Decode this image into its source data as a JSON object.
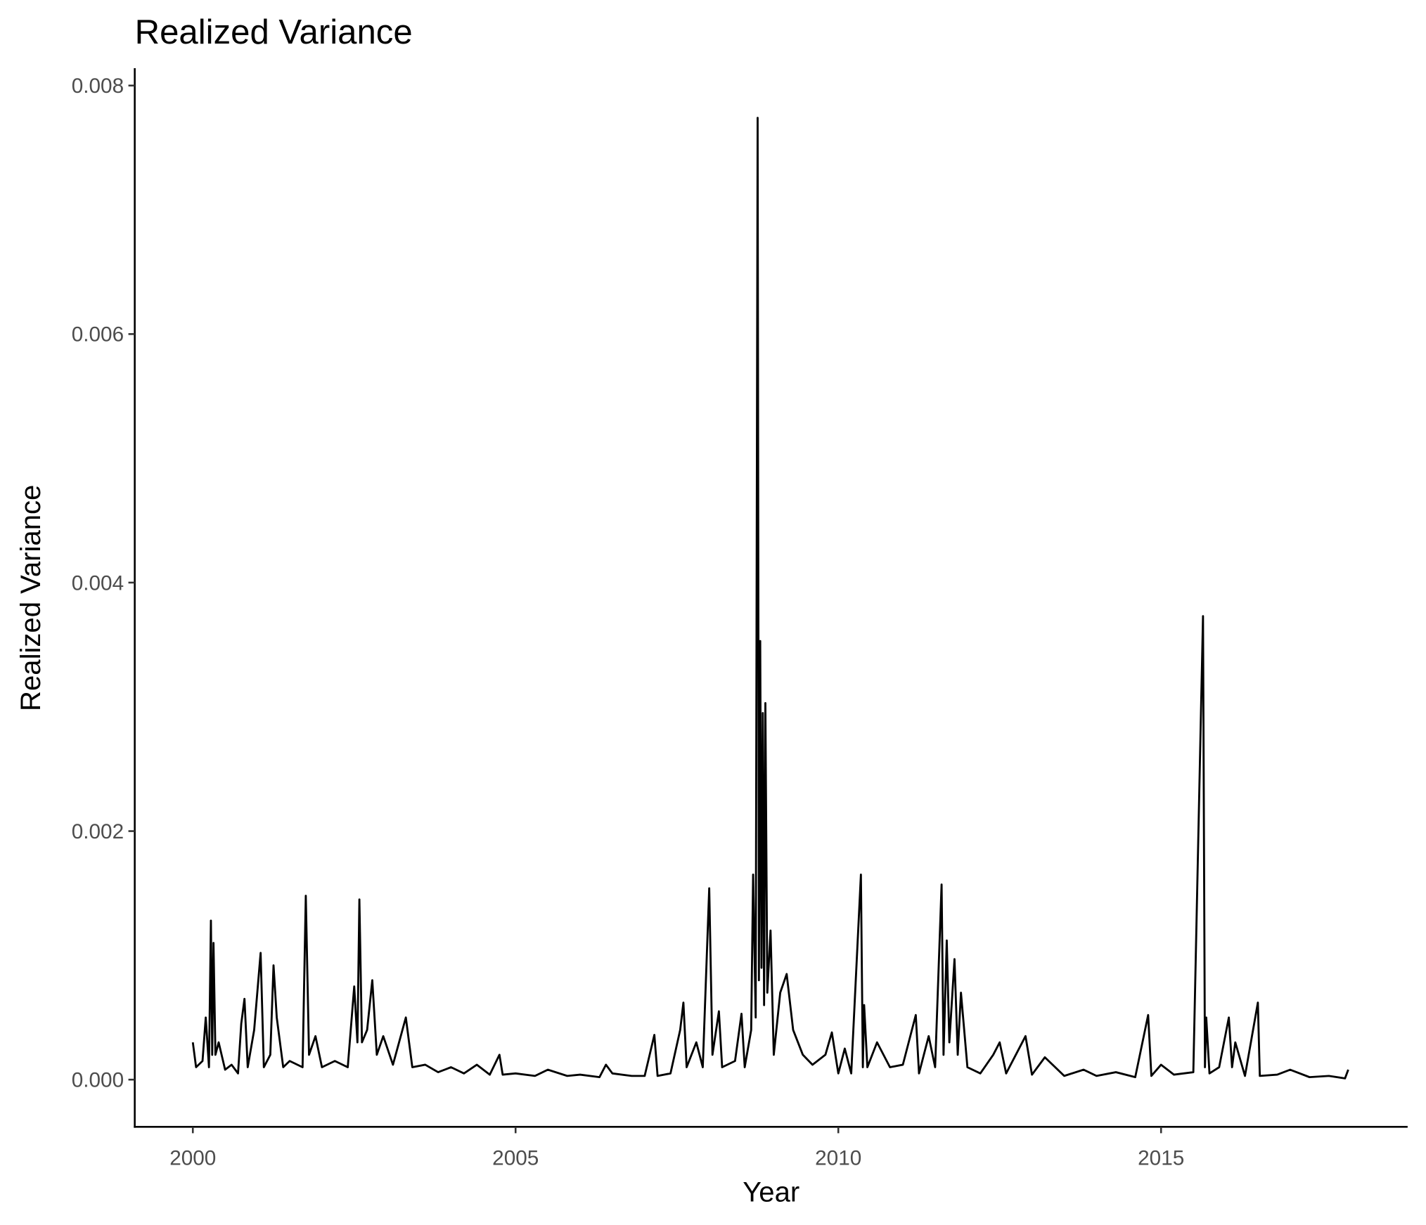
{
  "chart_data": {
    "type": "line",
    "title": "Realized Variance",
    "x_label": "Year",
    "y_label": "Realized Variance",
    "color": "#000000",
    "x": [
      2000.0,
      2000.05,
      2000.15,
      2000.2,
      2000.25,
      2000.28,
      2000.3,
      2000.32,
      2000.35,
      2000.4,
      2000.5,
      2000.6,
      2000.7,
      2000.75,
      2000.8,
      2000.85,
      2000.95,
      2001.05,
      2001.1,
      2001.2,
      2001.25,
      2001.3,
      2001.4,
      2001.5,
      2001.7,
      2001.75,
      2001.8,
      2001.9,
      2002.0,
      2002.2,
      2002.4,
      2002.5,
      2002.55,
      2002.58,
      2002.62,
      2002.7,
      2002.78,
      2002.85,
      2002.95,
      2003.1,
      2003.3,
      2003.4,
      2003.6,
      2003.8,
      2004.0,
      2004.2,
      2004.4,
      2004.6,
      2004.75,
      2004.8,
      2005.0,
      2005.3,
      2005.5,
      2005.8,
      2006.0,
      2006.3,
      2006.4,
      2006.5,
      2006.8,
      2007.0,
      2007.15,
      2007.2,
      2007.4,
      2007.55,
      2007.6,
      2007.65,
      2007.8,
      2007.9,
      2008.0,
      2008.05,
      2008.15,
      2008.2,
      2008.4,
      2008.5,
      2008.55,
      2008.65,
      2008.68,
      2008.72,
      2008.75,
      2008.77,
      2008.79,
      2008.81,
      2008.83,
      2008.85,
      2008.87,
      2008.9,
      2008.95,
      2009.0,
      2009.1,
      2009.2,
      2009.3,
      2009.45,
      2009.6,
      2009.8,
      2009.9,
      2010.0,
      2010.1,
      2010.2,
      2010.35,
      2010.38,
      2010.4,
      2010.45,
      2010.6,
      2010.8,
      2011.0,
      2011.2,
      2011.25,
      2011.4,
      2011.5,
      2011.6,
      2011.63,
      2011.68,
      2011.72,
      2011.8,
      2011.85,
      2011.9,
      2012.0,
      2012.2,
      2012.4,
      2012.5,
      2012.6,
      2012.9,
      2013.0,
      2013.2,
      2013.5,
      2013.8,
      2014.0,
      2014.3,
      2014.6,
      2014.8,
      2014.85,
      2015.0,
      2015.2,
      2015.5,
      2015.65,
      2015.68,
      2015.7,
      2015.75,
      2015.9,
      2016.05,
      2016.1,
      2016.15,
      2016.3,
      2016.5,
      2016.53,
      2016.8,
      2017.0,
      2017.3,
      2017.6,
      2017.85,
      2017.9
    ],
    "values": [
      0.0003,
      0.0001,
      0.00015,
      0.0005,
      0.0001,
      0.00128,
      0.0002,
      0.0011,
      0.0002,
      0.0003,
      8e-05,
      0.00012,
      5e-05,
      0.00045,
      0.00065,
      0.0001,
      0.0004,
      0.00102,
      0.0001,
      0.0002,
      0.00092,
      0.0005,
      0.0001,
      0.00015,
      0.0001,
      0.00148,
      0.0002,
      0.00035,
      0.0001,
      0.00015,
      0.0001,
      0.00075,
      0.0003,
      0.00145,
      0.0003,
      0.0004,
      0.0008,
      0.0002,
      0.00035,
      0.00012,
      0.0005,
      0.0001,
      0.00012,
      6e-05,
      0.0001,
      5e-05,
      0.00012,
      4e-05,
      0.0002,
      4e-05,
      5e-05,
      3e-05,
      8e-05,
      3e-05,
      4e-05,
      2e-05,
      0.00012,
      5e-05,
      3e-05,
      3e-05,
      0.00036,
      3e-05,
      5e-05,
      0.0004,
      0.00062,
      0.0001,
      0.0003,
      0.0001,
      0.00154,
      0.0002,
      0.00055,
      0.0001,
      0.00015,
      0.00053,
      0.0001,
      0.0004,
      0.00165,
      0.0005,
      0.00774,
      0.0008,
      0.00353,
      0.0009,
      0.00295,
      0.0006,
      0.00303,
      0.0007,
      0.0012,
      0.0002,
      0.0007,
      0.00085,
      0.0004,
      0.0002,
      0.00012,
      0.0002,
      0.00038,
      5e-05,
      0.00025,
      5e-05,
      0.00165,
      0.0001,
      0.0006,
      0.0001,
      0.0003,
      0.0001,
      0.00012,
      0.00052,
      5e-05,
      0.00035,
      0.0001,
      0.00157,
      0.0002,
      0.00112,
      0.0003,
      0.00097,
      0.0002,
      0.0007,
      0.0001,
      5e-05,
      0.0002,
      0.0003,
      5e-05,
      0.00035,
      4e-05,
      0.00018,
      3e-05,
      8e-05,
      3e-05,
      6e-05,
      2e-05,
      0.00052,
      3e-05,
      0.00012,
      4e-05,
      6e-05,
      0.00373,
      0.0001,
      0.0005,
      5e-05,
      0.0001,
      0.0005,
      0.0001,
      0.0003,
      3e-05,
      0.00062,
      3e-05,
      4e-05,
      8e-05,
      2e-05,
      3e-05,
      1e-05,
      8e-05
    ],
    "xlim": [
      1999.1,
      2018.82
    ],
    "xticks": [
      2000,
      2005,
      2010,
      2015
    ],
    "ylim": [
      -0.00038,
      0.00814
    ],
    "yticks": [
      {
        "value": 0,
        "label": "0.000"
      },
      0.002,
      0.004,
      0.006,
      0.008
    ]
  }
}
